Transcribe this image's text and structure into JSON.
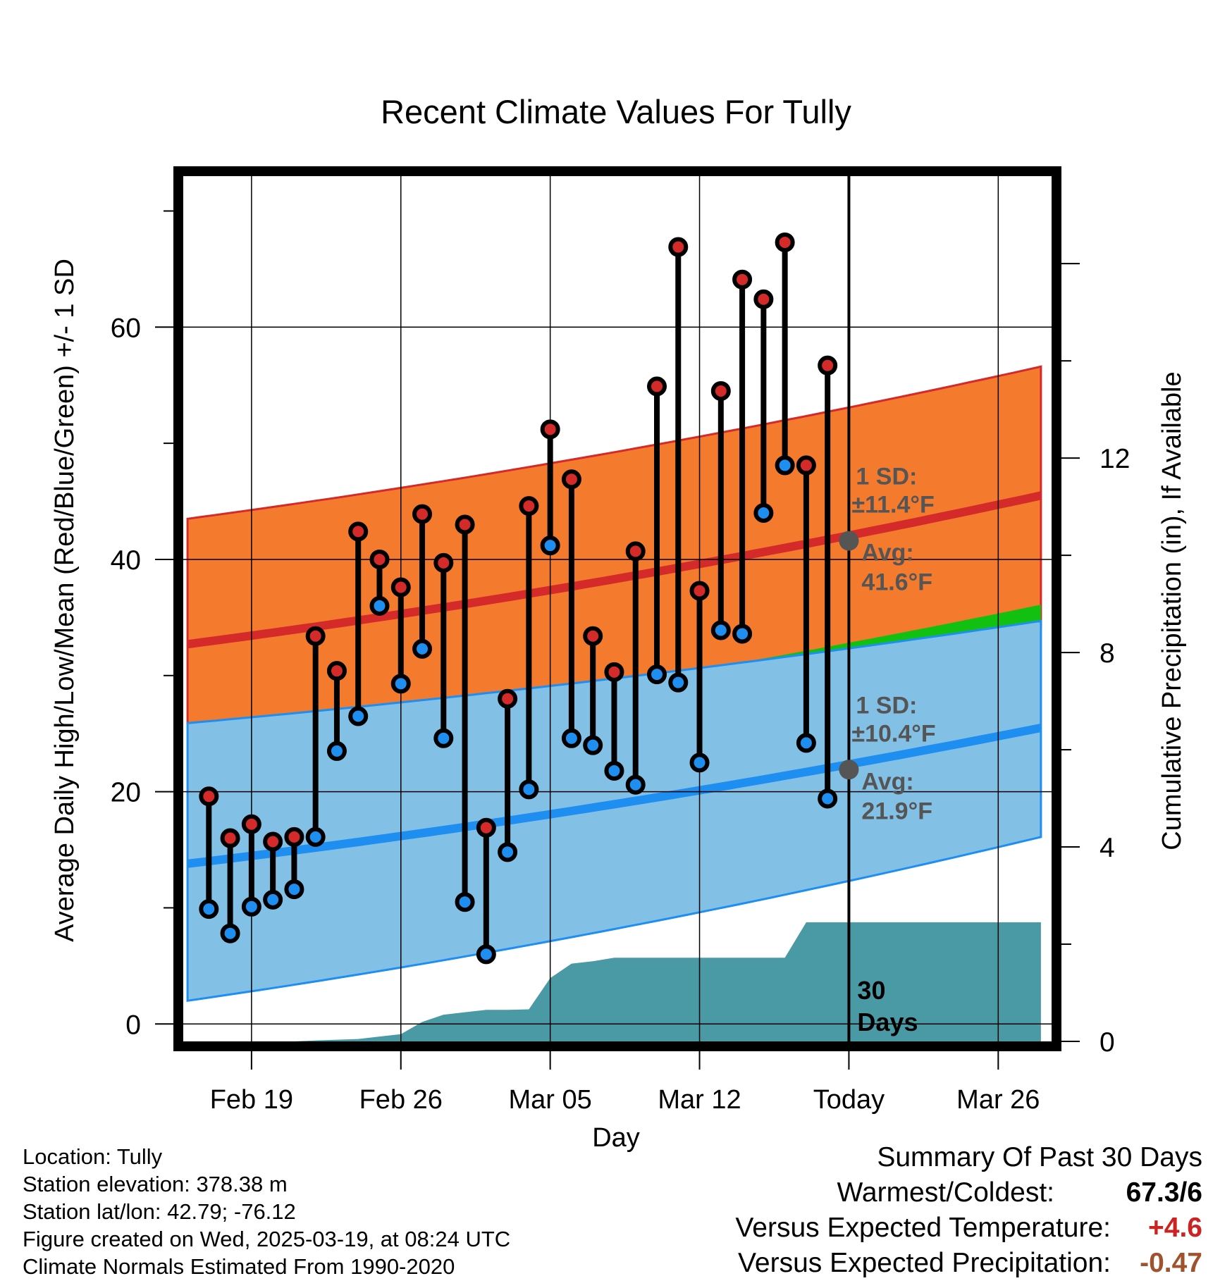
{
  "chart_data": {
    "type": "line",
    "title": "Recent Climate Values For Tully",
    "xlabel": "Day",
    "ylabel": "Average Daily High/Low/Mean (Red/Blue/Green) +/- 1 SD",
    "y2label": "Cumulative Precipitation (in), If Available",
    "x_ticks": [
      {
        "day": 0,
        "label": "Feb 19"
      },
      {
        "day": 7,
        "label": "Feb 26"
      },
      {
        "day": 14,
        "label": "Mar 05"
      },
      {
        "day": 21,
        "label": "Mar 12"
      },
      {
        "day": 28,
        "label": "Today"
      },
      {
        "day": 35,
        "label": "Mar 26"
      }
    ],
    "x_range": [
      -3.2,
      37.5
    ],
    "x_day_zero": "Feb 19",
    "ylim": [
      -1.5,
      73
    ],
    "y_ticks": [
      0,
      20,
      40,
      60
    ],
    "y2lim": [
      0,
      17.8
    ],
    "y2_ticks": [
      0,
      4,
      8,
      12
    ],
    "grid": true,
    "days": [
      -2,
      -1,
      0,
      1,
      2,
      3,
      4,
      5,
      6,
      7,
      8,
      9,
      10,
      11,
      12,
      13,
      14,
      15,
      16,
      17,
      18,
      19,
      20,
      21,
      22,
      23,
      24,
      25,
      26,
      27
    ],
    "highs": [
      19.6,
      16.0,
      17.2,
      15.7,
      16.1,
      33.4,
      30.4,
      42.4,
      40.0,
      37.6,
      43.9,
      39.7,
      43.0,
      16.9,
      28.0,
      44.6,
      51.2,
      46.9,
      33.4,
      30.3,
      40.7,
      54.9,
      66.9,
      37.3,
      54.5,
      64.1,
      62.4,
      67.3,
      48.1,
      56.7
    ],
    "lows": [
      9.9,
      7.8,
      10.1,
      10.7,
      11.6,
      16.1,
      23.5,
      26.5,
      36.0,
      29.3,
      32.3,
      24.6,
      10.5,
      6.0,
      14.8,
      20.2,
      41.2,
      24.6,
      24.0,
      21.8,
      20.6,
      30.1,
      29.4,
      22.5,
      33.9,
      33.6,
      44.0,
      48.1,
      24.2,
      19.4
    ],
    "series": [
      {
        "name": "High",
        "color": "#cc2222"
      },
      {
        "name": "Low",
        "color": "#1e90ff"
      }
    ],
    "normals": {
      "days": [
        -3,
        37
      ],
      "high_avg": [
        32.7,
        45.5
      ],
      "high_band_top": [
        43.5,
        56.6
      ],
      "high_band_bottom": [
        25.9,
        34.2
      ],
      "low_avg": [
        13.8,
        25.5
      ],
      "low_band_top": [
        25.9,
        34.7
      ],
      "low_band_bottom": [
        2.0,
        16.1
      ],
      "mean_avg": [
        23.2,
        35.4
      ]
    },
    "precip_cumulative": {
      "days": [
        2,
        3,
        5,
        6,
        7,
        8,
        9,
        10,
        11,
        12,
        13,
        14,
        15,
        16,
        17,
        18,
        19,
        20,
        21,
        22,
        23,
        24,
        25,
        26,
        27,
        28,
        37
      ],
      "values": [
        0,
        0.02,
        0.05,
        0.1,
        0.15,
        0.4,
        0.55,
        0.6,
        0.65,
        0.65,
        0.66,
        1.3,
        1.6,
        1.65,
        1.72,
        1.72,
        1.72,
        1.72,
        1.72,
        1.72,
        1.72,
        1.72,
        1.72,
        2.45,
        2.45,
        2.45,
        2.45
      ]
    },
    "annotations": {
      "high_sd_label": "1 SD:",
      "high_sd_value": "±11.4°F",
      "high_avg_label": "Avg:",
      "high_avg_value": "41.6°F",
      "high_avg_y": 41.6,
      "low_sd_label": "1 SD:",
      "low_sd_value": "±10.4°F",
      "low_avg_label": "Avg:",
      "low_avg_y": 21.9,
      "low_avg_value": "21.9°F",
      "window_line1": "30",
      "window_line2": "Days"
    },
    "colors": {
      "high_band": "#f47a2e",
      "high_line": "#d42a2a",
      "low_band": "#82c0e6",
      "low_line": "#1e8ef0",
      "mean_band": "#12c012",
      "overlap": "#991414",
      "precip": "#4a9aa5",
      "marker_line": "#000000",
      "annotation": "#555555"
    }
  },
  "footer": {
    "location": "Location: Tully",
    "elevation": "Station elevation: 378.38 m",
    "latlon": "Station lat/lon: 42.79; -76.12",
    "created": "Figure created on Wed, 2025-03-19, at 08:24 UTC",
    "normals": "Climate Normals Estimated From 1990-2020"
  },
  "summary": {
    "title": "Summary Of Past 30 Days",
    "warmest_label": "Warmest/Coldest:",
    "warmest_value": "67.3/6",
    "temp_label": "Versus Expected Temperature:",
    "temp_value": "+4.6",
    "temp_color": "#cc2222",
    "precip_label": "Versus Expected Precipitation:",
    "precip_value": "-0.47",
    "precip_color": "#a0522d"
  }
}
